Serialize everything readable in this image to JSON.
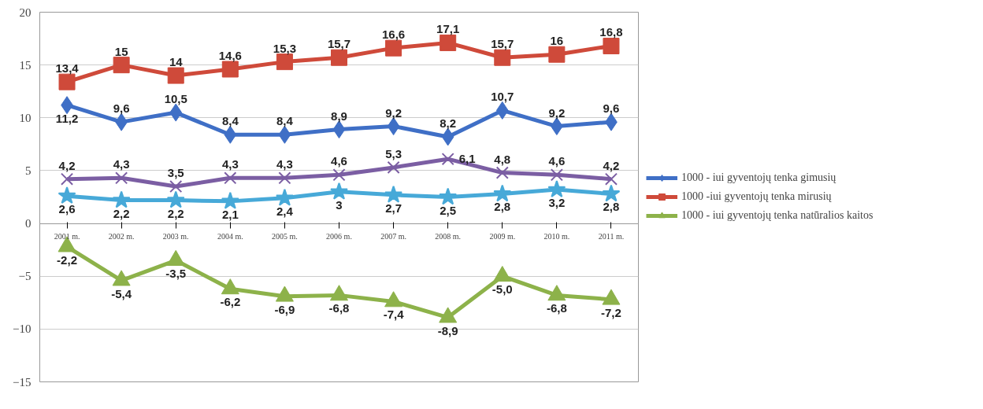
{
  "chart_data": {
    "type": "line",
    "categories": [
      "2001 m.",
      "2002 m.",
      "2003 m.",
      "2004 m.",
      "2005 m.",
      "2006 m.",
      "2007 m.",
      "2008 m.",
      "2009 m.",
      "2010 m.",
      "2011 m."
    ],
    "series": [
      {
        "name": "1000 - iui gyventojų tenka gimusių",
        "color": "#3f6fc6",
        "marker": "diamond",
        "values": [
          11.2,
          9.6,
          10.5,
          8.4,
          8.4,
          8.9,
          9.2,
          8.2,
          10.7,
          9.2,
          9.6
        ],
        "value_labels": [
          "11,2",
          "9,6",
          "10,5",
          "8,4",
          "8,4",
          "8,9",
          "9,2",
          "8,2",
          "10,7",
          "9,2",
          "9,6"
        ]
      },
      {
        "name": "1000 -iui gyventojų tenka mirusių",
        "color": "#cf4a3a",
        "marker": "square",
        "values": [
          13.4,
          15,
          14,
          14.6,
          15.3,
          15.7,
          16.6,
          17.1,
          15.7,
          16,
          16.8
        ],
        "value_labels": [
          "13,4",
          "15",
          "14",
          "14,6",
          "15,3",
          "15,7",
          "16,6",
          "17,1",
          "15,7",
          "16",
          "16,8"
        ]
      },
      {
        "color": "#7b5ea3",
        "marker": "cross",
        "values": [
          4.2,
          4.3,
          3.5,
          4.3,
          4.3,
          4.6,
          5.3,
          6.1,
          4.8,
          4.6,
          4.2
        ],
        "value_labels": [
          "4,2",
          "4,3",
          "3,5",
          "4,3",
          "4,3",
          "4,6",
          "5,3",
          "6,1",
          "4,8",
          "4,6",
          "4,2"
        ]
      },
      {
        "color": "#47a9d8",
        "marker": "star",
        "values": [
          2.6,
          2.2,
          2.2,
          2.1,
          2.4,
          3,
          2.7,
          2.5,
          2.8,
          3.2,
          2.8
        ],
        "value_labels": [
          "2,6",
          "2,2",
          "2,2",
          "2,1",
          "2,4",
          "3",
          "2,7",
          "2,5",
          "2,8",
          "3,2",
          "2,8"
        ]
      },
      {
        "name": "1000 - iui gyventojų tenka natūralios kaitos",
        "color": "#8db24a",
        "marker": "triangle",
        "values": [
          -2.2,
          -5.4,
          -3.5,
          -6.2,
          -6.9,
          -6.8,
          -7.4,
          -8.9,
          -5.0,
          -6.8,
          -7.2
        ],
        "value_labels": [
          "-2,2",
          "-5,4",
          "-3,5",
          "-6,2",
          "-6,9",
          "-6,8",
          "-7,4",
          "-8,9",
          "-5,0",
          "-6,8",
          "-7,2"
        ]
      }
    ],
    "ylim": [
      -15,
      20
    ],
    "yticks": [
      -15,
      -10,
      -5,
      0,
      5,
      10,
      15,
      20
    ],
    "grid": "y",
    "legend": "right"
  }
}
